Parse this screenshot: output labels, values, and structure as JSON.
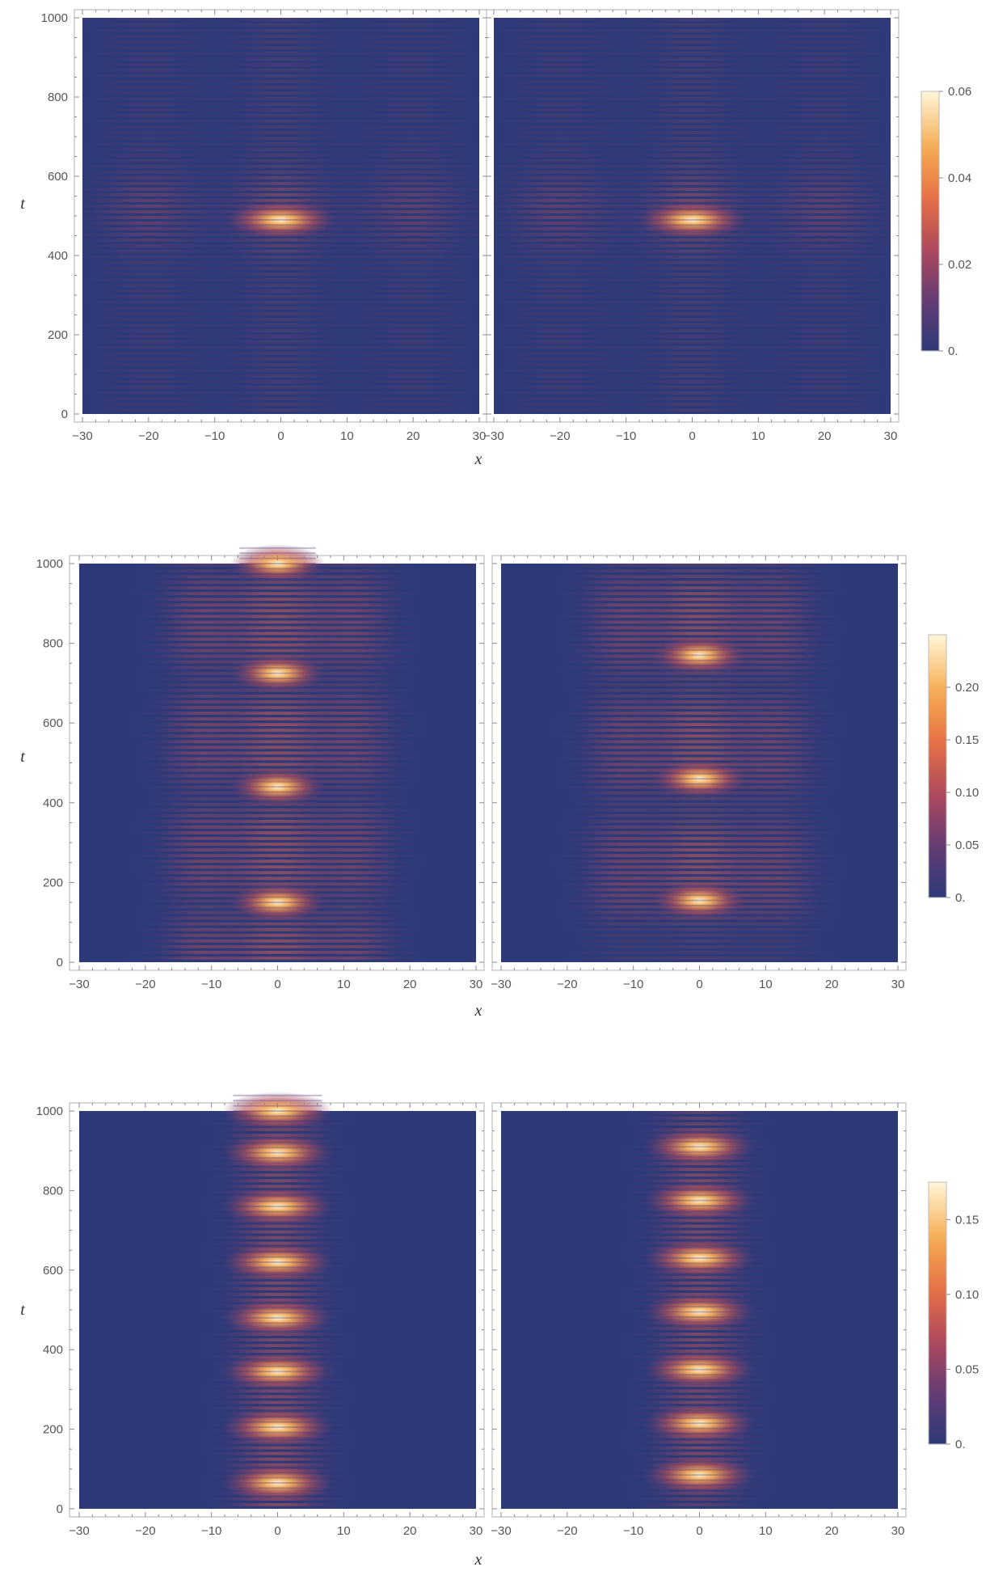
{
  "chart_data": [
    {
      "type": "heatmap",
      "title": "",
      "xlabel": "x",
      "ylabel": "t",
      "xlim": [
        -30,
        30
      ],
      "ylim": [
        0,
        1000
      ],
      "x_ticks": [
        "−30",
        "−20",
        "−10",
        "0",
        "10",
        "20",
        "30"
      ],
      "y_ticks": [
        "0",
        "200",
        "400",
        "600",
        "800",
        "1000"
      ],
      "colormap": {
        "low": "#2e3a78",
        "high": "#fff7d8"
      },
      "colorbar": {
        "min": 0,
        "max": 0.06,
        "labels": [
          "0.",
          "0.02",
          "0.04",
          "0.06"
        ],
        "values": [
          0,
          0.02,
          0.04,
          0.06
        ]
      },
      "panels": [
        {
          "peak_t": [
            490
          ],
          "peak_value": 0.06,
          "core_width": 3.5,
          "halo_x": 20,
          "halo_width": 7,
          "ring_t": 0,
          "stripe_count": 70
        },
        {
          "peak_t": [
            490
          ],
          "peak_value": 0.06,
          "core_width": 3.5,
          "halo_x": 20,
          "halo_width": 7,
          "ring_t": 0,
          "stripe_count": 70
        }
      ]
    },
    {
      "type": "heatmap",
      "title": "",
      "xlabel": "x",
      "ylabel": "t",
      "xlim": [
        -30,
        30
      ],
      "ylim": [
        0,
        1000
      ],
      "x_ticks": [
        "−30",
        "−20",
        "−10",
        "0",
        "10",
        "20",
        "30"
      ],
      "y_ticks": [
        "0",
        "200",
        "400",
        "600",
        "800",
        "1000"
      ],
      "colormap": {
        "low": "#2e3a78",
        "high": "#fff7d8"
      },
      "colorbar": {
        "min": 0,
        "max": 0.25,
        "labels": [
          "0.",
          "0.05",
          "0.10",
          "0.15",
          "0.20"
        ],
        "values": [
          0,
          0.05,
          0.1,
          0.15,
          0.2
        ]
      },
      "panels": [
        {
          "peak_t": [
            150,
            440,
            725,
            1000
          ],
          "peak_value": 0.25,
          "core_width": 3,
          "halo_x": 12,
          "halo_width": 5,
          "ring_t": 140,
          "stripe_count": 70
        },
        {
          "peak_t": [
            155,
            460,
            770
          ],
          "peak_value": 0.25,
          "core_width": 3,
          "halo_x": 12,
          "halo_width": 5,
          "ring_t": 150,
          "stripe_count": 70
        }
      ]
    },
    {
      "type": "heatmap",
      "title": "",
      "xlabel": "x",
      "ylabel": "t",
      "xlim": [
        -30,
        30
      ],
      "ylim": [
        0,
        1000
      ],
      "x_ticks": [
        "−30",
        "−20",
        "−10",
        "0",
        "10",
        "20",
        "30"
      ],
      "y_ticks": [
        "0",
        "200",
        "400",
        "600",
        "800",
        "1000"
      ],
      "colormap": {
        "low": "#2e3a78",
        "high": "#fff7d8"
      },
      "colorbar": {
        "min": 0,
        "max": 0.175,
        "labels": [
          "0.",
          "0.05",
          "0.10",
          "0.15"
        ],
        "values": [
          0,
          0.05,
          0.1,
          0.15
        ]
      },
      "panels": [
        {
          "peak_t": [
            65,
            205,
            345,
            480,
            620,
            760,
            895,
            1000
          ],
          "peak_value": 0.175,
          "core_width": 3.5,
          "halo_x": 0,
          "halo_width": 0,
          "ring_t": 0,
          "stripe_count": 70
        },
        {
          "peak_t": [
            85,
            215,
            350,
            495,
            630,
            775,
            910
          ],
          "peak_value": 0.175,
          "core_width": 3.5,
          "halo_x": 0,
          "halo_width": 0,
          "ring_t": 0,
          "stripe_count": 70
        }
      ]
    }
  ]
}
